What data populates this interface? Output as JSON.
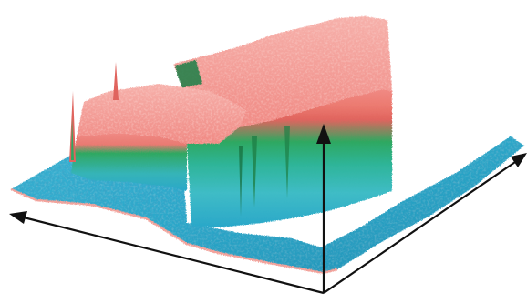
{
  "figure": {
    "description_visible_text": "",
    "surface_style": "3d-topography",
    "colors": {
      "background": "#ffffff",
      "low": "#2aa7c9",
      "low_dark": "#1f86a8",
      "mid_cyan": "#3fbcc6",
      "mid_green": "#2fa861",
      "mid_green_dark": "#1e7f46",
      "high": "#f08a84",
      "high_light": "#f6b0aa",
      "high_dark": "#e0645e",
      "edge": "#f2a39c",
      "axis": "#111111"
    },
    "axes": [
      {
        "name": "x-axis",
        "direction": "left"
      },
      {
        "name": "y-axis",
        "direction": "back-right"
      },
      {
        "name": "z-axis",
        "direction": "up"
      }
    ],
    "regions": [
      {
        "name": "low-floor",
        "level": "low"
      },
      {
        "name": "left-plateau",
        "level": "high"
      },
      {
        "name": "right-plateau",
        "level": "high"
      },
      {
        "name": "central-gap",
        "level": "low"
      }
    ]
  }
}
